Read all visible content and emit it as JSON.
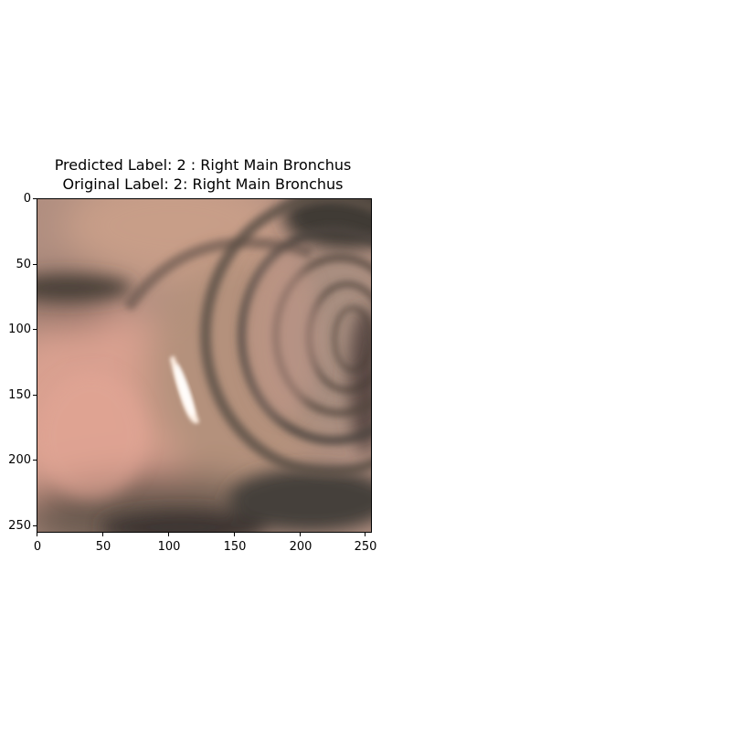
{
  "figure": {
    "title_line1": "Predicted Label: 2 : Right Main Bronchus",
    "title_line2": "Original Label: 2: Right Main Bronchus",
    "image_description": "bronchoscopy view, pink/tan airway tissue with concentric rings",
    "x_ticks": [
      "0",
      "50",
      "100",
      "150",
      "200",
      "250"
    ],
    "y_ticks": [
      "0",
      "50",
      "100",
      "150",
      "200",
      "250"
    ],
    "xlim": [
      0,
      256
    ],
    "ylim": [
      0,
      256
    ],
    "colors": {
      "tissue_pink": "#c49488",
      "tissue_tan": "#b69a80",
      "shadow_dark": "#3a3632",
      "highlight": "#fff4ea"
    }
  }
}
